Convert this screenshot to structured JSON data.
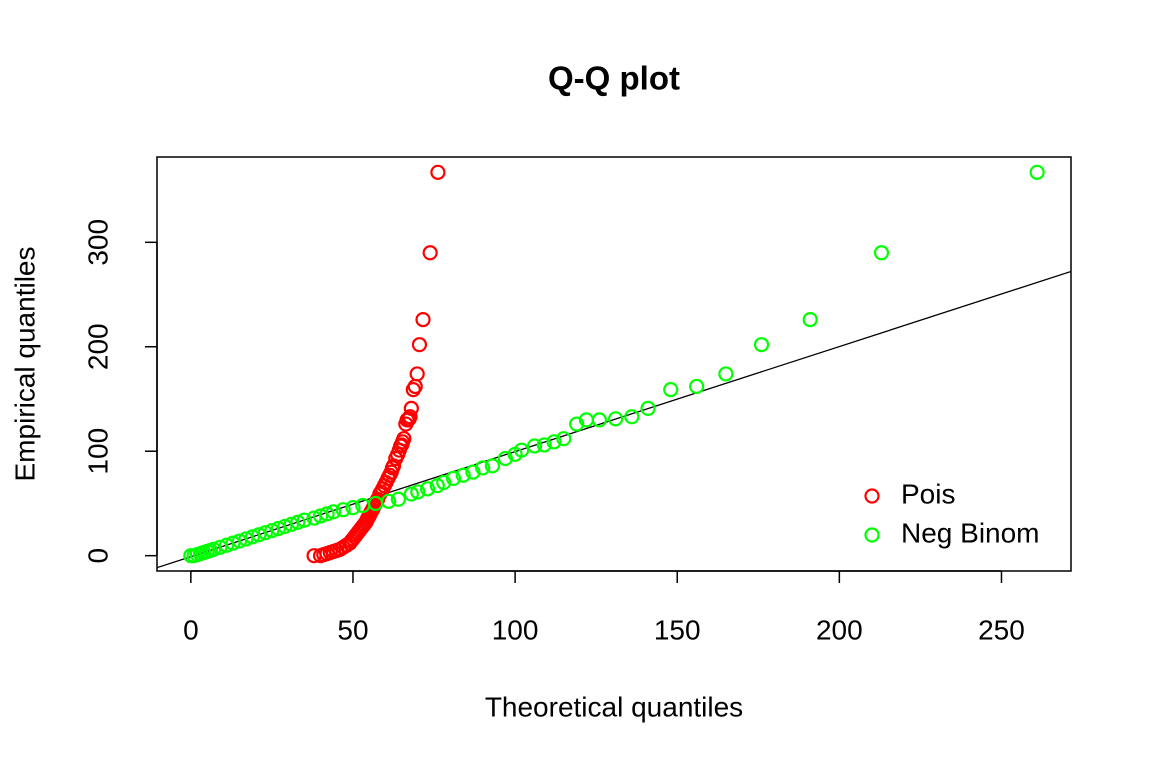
{
  "chart_data": {
    "type": "scatter",
    "title": "Q-Q plot",
    "x_label": "Theoretical quantiles",
    "y_label": "Empirical quantiles",
    "xlim": [
      -10.44,
      271.44
    ],
    "ylim": [
      -14.68,
      381.68
    ],
    "xticks": [
      0,
      50,
      100,
      150,
      200,
      250
    ],
    "yticks": [
      0,
      100,
      200,
      300
    ],
    "grid": false,
    "legend": "bottomright",
    "reference_line": {
      "intercept": -1,
      "slope": 1.006,
      "color": "#000000"
    },
    "series": [
      {
        "name": "Pois",
        "color": "#ff0000",
        "x": [
          38,
          40,
          41,
          42,
          43,
          44,
          45,
          46,
          47,
          48,
          49,
          49.5,
          50,
          50.5,
          51,
          51.5,
          52,
          52.5,
          53,
          53.5,
          54,
          54.3,
          54.6,
          55,
          55.3,
          55.6,
          56,
          56.3,
          56.6,
          57,
          57.3,
          57.6,
          58.3,
          58.7,
          59.2,
          59.7,
          60.2,
          60.8,
          61.3,
          61.8,
          62.2,
          62.5,
          63.2,
          63.8,
          64.3,
          64.7,
          65,
          65.3,
          65.7,
          66.3,
          66.7,
          67,
          67.3,
          67.6,
          68,
          68.6,
          69.2,
          69.8,
          70.5,
          71.6,
          73.8,
          76.2
        ],
        "values": [
          0,
          0,
          1,
          2,
          3,
          4,
          5,
          6,
          8,
          10,
          12,
          14,
          16,
          18,
          20,
          22,
          24,
          26,
          28,
          30,
          32,
          34,
          36,
          38,
          40,
          42,
          44,
          46,
          48,
          50,
          52,
          54,
          59,
          61,
          64,
          67,
          70,
          74,
          77,
          80,
          84,
          86,
          93,
          97,
          101,
          105,
          106,
          109,
          112,
          126,
          130,
          130,
          131,
          133,
          141,
          159,
          162,
          174,
          202,
          226,
          290,
          367
        ]
      },
      {
        "name": "Neg Binom",
        "color": "#00ff00",
        "x": [
          0,
          1,
          2,
          3,
          4,
          5,
          6,
          7,
          9,
          11,
          13,
          15,
          17,
          19,
          21,
          23,
          25,
          27,
          29,
          31,
          33,
          35,
          38,
          40,
          42,
          44,
          47,
          50,
          53,
          57,
          61,
          64,
          68,
          70,
          73,
          76,
          78,
          81,
          84,
          87,
          90,
          93,
          97,
          100,
          102,
          106,
          109,
          112,
          115,
          119,
          122,
          126,
          131,
          136,
          141,
          148,
          156,
          165,
          176,
          191,
          213,
          261
        ],
        "values": [
          0,
          0,
          1,
          2,
          3,
          4,
          5,
          6,
          8,
          10,
          12,
          14,
          16,
          18,
          20,
          22,
          24,
          26,
          28,
          30,
          32,
          34,
          36,
          38,
          40,
          42,
          44,
          46,
          48,
          50,
          52,
          54,
          59,
          61,
          64,
          67,
          70,
          74,
          77,
          80,
          84,
          86,
          93,
          97,
          101,
          105,
          106,
          109,
          112,
          126,
          130,
          130,
          131,
          133,
          141,
          159,
          162,
          174,
          202,
          226,
          290,
          367
        ]
      }
    ]
  }
}
